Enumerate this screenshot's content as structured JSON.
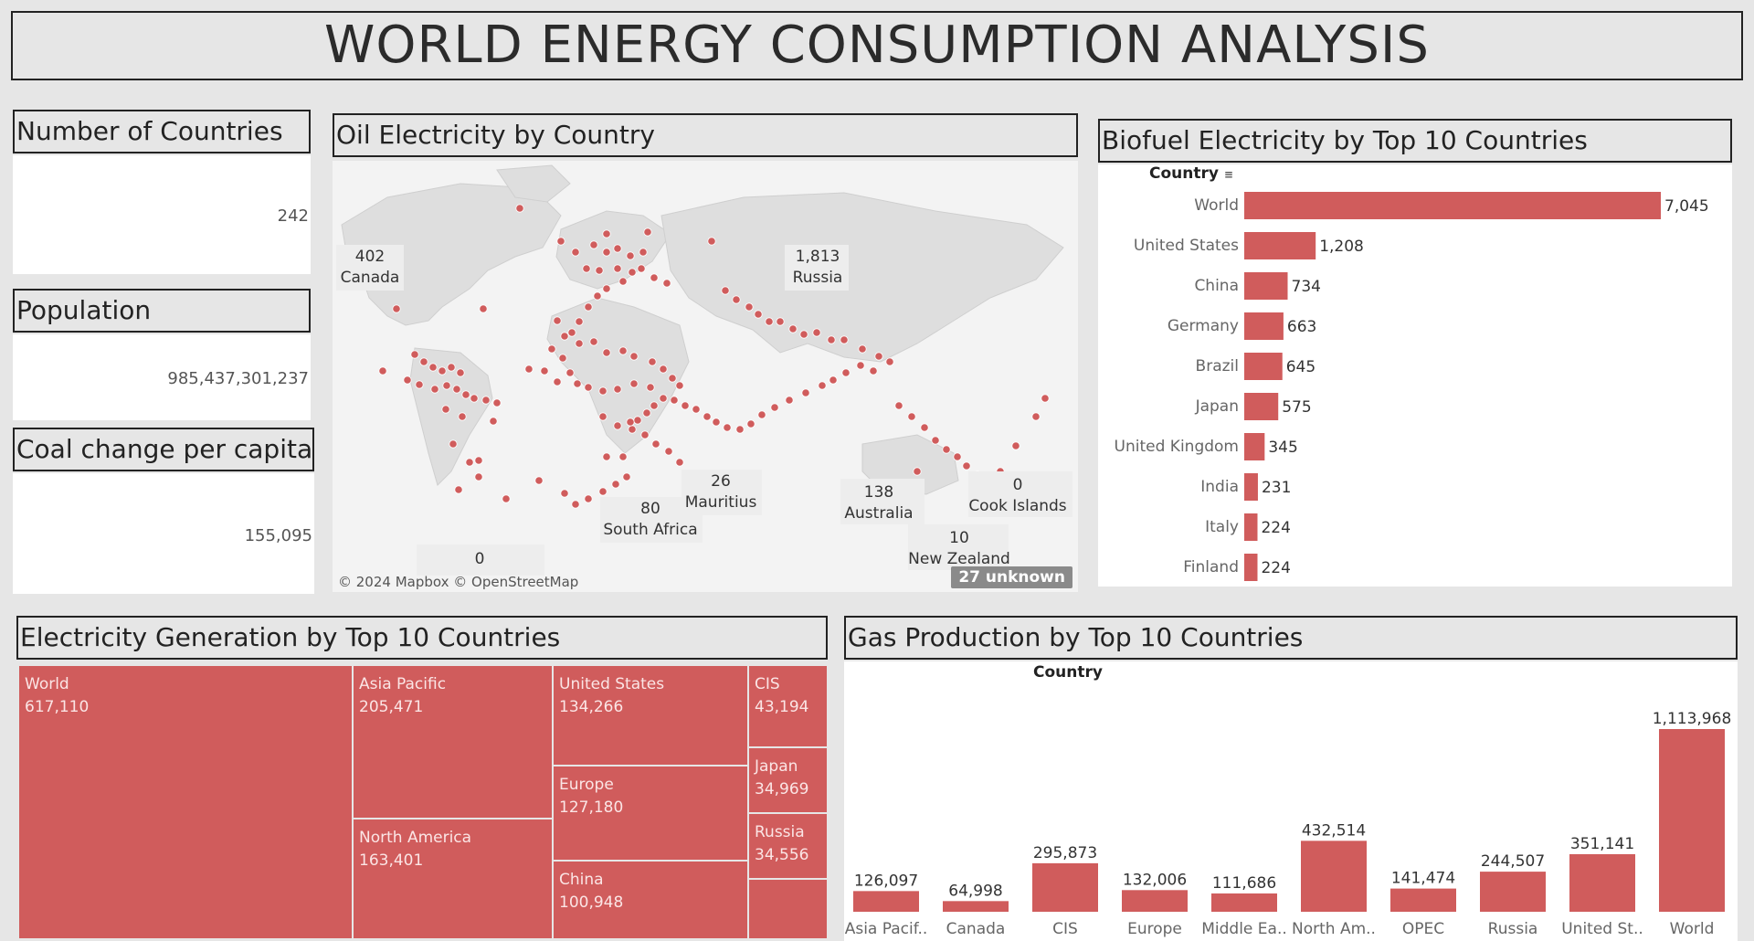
{
  "dashboard": {
    "title": "WORLD ENERGY CONSUMPTION ANALYSIS"
  },
  "kpis": {
    "countries": {
      "title": "Number of Countries",
      "value": "242"
    },
    "population": {
      "title": "Population",
      "value": "985,437,301,237"
    },
    "coal": {
      "title": "Coal change per capita",
      "value": "155,095"
    }
  },
  "map": {
    "title": "Oil Electricity by Country",
    "attribution": "© 2024 Mapbox © OpenStreetMap",
    "unknown_badge": "27 unknown",
    "callouts": [
      {
        "value": "402",
        "country": "Canada"
      },
      {
        "value": "1,813",
        "country": "Russia"
      },
      {
        "value": "80",
        "country": "South Africa"
      },
      {
        "value": "26",
        "country": "Mauritius"
      },
      {
        "value": "138",
        "country": "Australia"
      },
      {
        "value": "0",
        "country": "Cook Islands"
      },
      {
        "value": "10",
        "country": "New Zealand"
      },
      {
        "value": "0",
        "country": ""
      }
    ],
    "point_color": "#d05c5c"
  },
  "biofuel": {
    "title": "Biofuel Electricity by Top 10 Countries",
    "column_header": "Country",
    "sort_icon": "sort-descending-icon",
    "chart_data": {
      "type": "bar",
      "orientation": "horizontal",
      "categories": [
        "World",
        "United States",
        "China",
        "Germany",
        "Brazil",
        "Japan",
        "United Kingdom",
        "India",
        "Italy",
        "Finland"
      ],
      "values": [
        7045,
        1208,
        734,
        663,
        645,
        575,
        345,
        231,
        224,
        224
      ],
      "value_labels": [
        "7,045",
        "1,208",
        "734",
        "663",
        "645",
        "575",
        "345",
        "231",
        "224",
        "224"
      ],
      "xlim": [
        0,
        7045
      ],
      "color": "#d05c5c"
    }
  },
  "electricity": {
    "title": "Electricity Generation by Top 10 Countries",
    "chart_data": {
      "type": "treemap",
      "items": [
        {
          "name": "World",
          "value": 617110,
          "label": "617,110"
        },
        {
          "name": "Asia Pacific",
          "value": 205471,
          "label": "205,471"
        },
        {
          "name": "North America",
          "value": 163401,
          "label": "163,401"
        },
        {
          "name": "United States",
          "value": 134266,
          "label": "134,266"
        },
        {
          "name": "Europe",
          "value": 127180,
          "label": "127,180"
        },
        {
          "name": "China",
          "value": 100948,
          "label": "100,948"
        },
        {
          "name": "CIS",
          "value": 43194,
          "label": "43,194"
        },
        {
          "name": "Japan",
          "value": 34969,
          "label": "34,969"
        },
        {
          "name": "Russia",
          "value": 34556,
          "label": "34,556"
        }
      ],
      "color": "#d05c5c"
    }
  },
  "gas": {
    "title": "Gas Production by Top 10 Countries",
    "column_header": "Country",
    "chart_data": {
      "type": "bar",
      "categories": [
        "Asia Pacif..",
        "Canada",
        "CIS",
        "Europe",
        "Middle Ea..",
        "North Am..",
        "OPEC",
        "Russia",
        "United St..",
        "World"
      ],
      "values": [
        126097,
        64998,
        295873,
        132006,
        111686,
        432514,
        141474,
        244507,
        351141,
        1113968
      ],
      "value_labels": [
        "126,097",
        "64,998",
        "295,873",
        "132,006",
        "111,686",
        "432,514",
        "141,474",
        "244,507",
        "351,141",
        "1,113,968"
      ],
      "ylim": [
        0,
        1113968
      ],
      "color": "#d05c5c"
    }
  }
}
